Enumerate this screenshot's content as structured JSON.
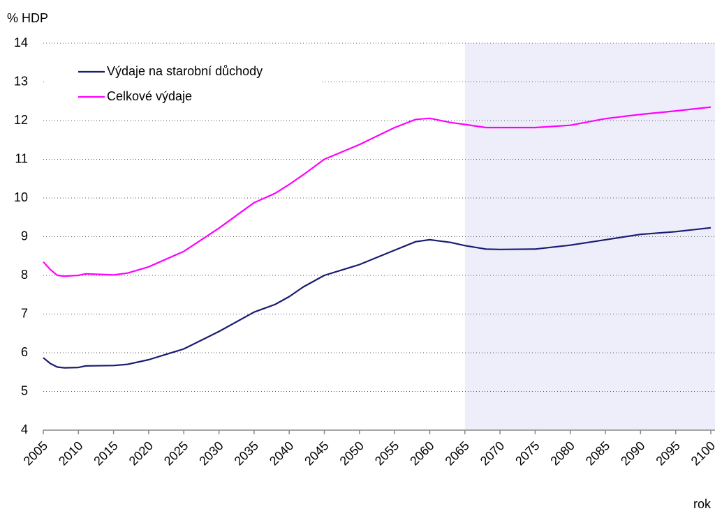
{
  "chart_data": {
    "type": "line",
    "y_axis_label": "% HDP",
    "x_axis_label": "rok",
    "x": [
      2005,
      2006,
      2007,
      2008,
      2010,
      2011,
      2015,
      2017,
      2020,
      2025,
      2030,
      2035,
      2038,
      2040,
      2042,
      2045,
      2050,
      2055,
      2058,
      2060,
      2063,
      2065,
      2068,
      2070,
      2075,
      2080,
      2085,
      2090,
      2095,
      2100
    ],
    "series": [
      {
        "name": "Výdaje na starobní důchody",
        "color": "#1a1a72",
        "values": [
          5.87,
          5.72,
          5.63,
          5.61,
          5.62,
          5.66,
          5.67,
          5.7,
          5.82,
          6.1,
          6.55,
          7.05,
          7.25,
          7.45,
          7.7,
          8.0,
          8.28,
          8.65,
          8.87,
          8.92,
          8.85,
          8.77,
          8.68,
          8.67,
          8.68,
          8.78,
          8.92,
          9.06,
          9.13,
          9.23
        ]
      },
      {
        "name": "Celkové výdaje",
        "color": "#ff00ff",
        "values": [
          8.35,
          8.15,
          8.0,
          7.98,
          8.0,
          8.04,
          8.01,
          8.06,
          8.22,
          8.62,
          9.22,
          9.88,
          10.12,
          10.35,
          10.6,
          11.0,
          11.38,
          11.82,
          12.03,
          12.06,
          11.95,
          11.9,
          11.82,
          11.82,
          11.82,
          11.88,
          12.05,
          12.16,
          12.25,
          12.35
        ]
      }
    ],
    "xlim": [
      2005,
      2100
    ],
    "ylim": [
      4,
      14
    ],
    "xticks": [
      2005,
      2010,
      2015,
      2020,
      2025,
      2030,
      2035,
      2040,
      2045,
      2050,
      2055,
      2060,
      2065,
      2070,
      2075,
      2080,
      2085,
      2090,
      2095,
      2100
    ],
    "yticks": [
      4,
      5,
      6,
      7,
      8,
      9,
      10,
      11,
      12,
      13,
      14
    ],
    "grid": true,
    "highlight_x": [
      2065,
      2100
    ],
    "highlight_color": "#eeeefa",
    "legend": "upper left"
  }
}
